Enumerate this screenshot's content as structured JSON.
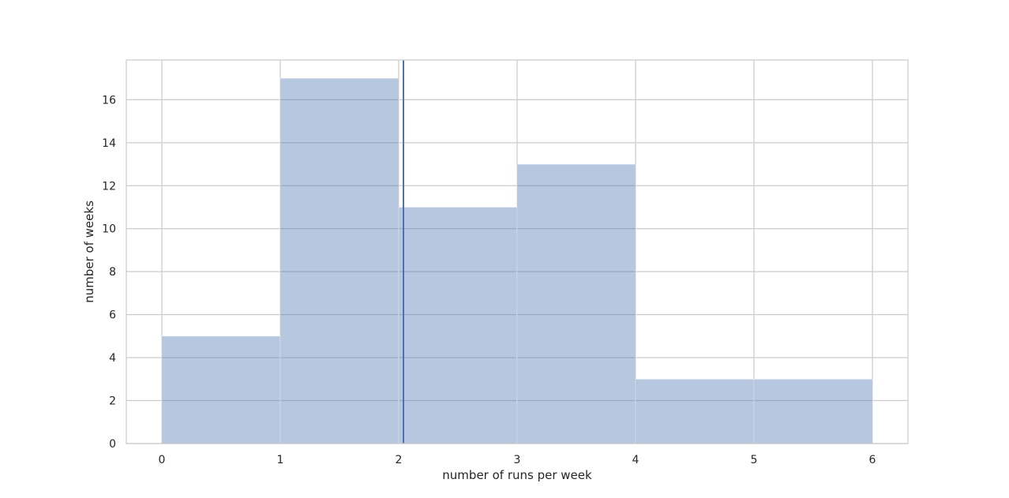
{
  "chart_data": {
    "type": "bar",
    "subtype": "histogram",
    "title": "",
    "xlabel": "number of runs per week",
    "ylabel": "number of weeks",
    "bins": [
      {
        "start": 0,
        "end": 1,
        "value": 5
      },
      {
        "start": 1,
        "end": 2,
        "value": 17
      },
      {
        "start": 2,
        "end": 3,
        "value": 11
      },
      {
        "start": 3,
        "end": 4,
        "value": 13
      },
      {
        "start": 4,
        "end": 5,
        "value": 3
      },
      {
        "start": 5,
        "end": 6,
        "value": 3
      }
    ],
    "reference_line": {
      "x": 2.04
    },
    "xlim": [
      -0.3,
      6.3
    ],
    "ylim": [
      0,
      17.85
    ],
    "xticks": [
      "0",
      "1",
      "2",
      "3",
      "4",
      "5",
      "6"
    ],
    "yticks": [
      "0",
      "2",
      "4",
      "6",
      "8",
      "10",
      "12",
      "14",
      "16"
    ],
    "grid": true,
    "legend": "none",
    "colors": {
      "bar": "#4c72b0",
      "bar_opacity": 0.4,
      "line": "#4c72b0",
      "grid": "#cccccc",
      "frame": "#cccccc"
    }
  }
}
